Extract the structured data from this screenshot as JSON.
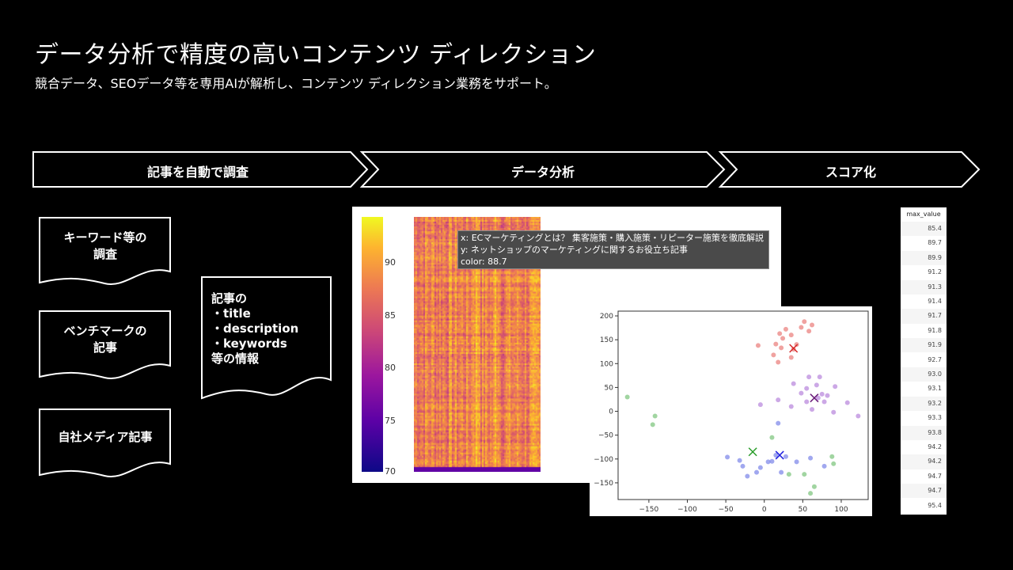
{
  "header": {
    "title": "データ分析で精度の高いコンテンツ ディレクション",
    "subtitle": "競合データ、SEOデータ等を専用AIが解析し、コンテンツ ディレクション業務をサポート。"
  },
  "steps": [
    {
      "label": "記事を自動で調査"
    },
    {
      "label": "データ分析"
    },
    {
      "label": "スコア化"
    }
  ],
  "documents": [
    {
      "line1": "キーワード等の",
      "line2": "調査"
    },
    {
      "line1": "ベンチマークの",
      "line2": "記事"
    },
    {
      "line1": "自社メディア記事",
      "line2": ""
    }
  ],
  "info_doc": {
    "lines": [
      "記事の",
      "・title",
      "・description",
      "・keywords",
      "等の情報"
    ]
  },
  "heatmap": {
    "colorbar_ticks": [
      "90",
      "85",
      "80",
      "75",
      "70"
    ],
    "colorbar_range": [
      70,
      94
    ],
    "colormap": "plasma",
    "tooltip": {
      "x": "x: ECマーケティングとは？ 集客施策・購入施策・リピーター施策を徹底解説",
      "y": "y: ネットショップのマーケティングに関するお役立ち記事",
      "color": "color: 88.7"
    }
  },
  "chart_data": {
    "type": "scatter",
    "xlim": [
      -190,
      135
    ],
    "ylim": [
      -185,
      210
    ],
    "x_ticks": [
      "−150",
      "−100",
      "−50",
      "0",
      "50",
      "100"
    ],
    "y_ticks": [
      "200",
      "150",
      "100",
      "50",
      "0",
      "−50",
      "−100",
      "−150"
    ],
    "grid": false,
    "clusters": [
      {
        "color": "#e8706d",
        "points": [
          [
            -8,
            138
          ],
          [
            12,
            118
          ],
          [
            15,
            141
          ],
          [
            20,
            163
          ],
          [
            24,
            153
          ],
          [
            28,
            172
          ],
          [
            35,
            160
          ],
          [
            38,
            130
          ],
          [
            42,
            140
          ],
          [
            18,
            103
          ],
          [
            48,
            176
          ],
          [
            52,
            188
          ],
          [
            58,
            168
          ],
          [
            62,
            181
          ],
          [
            35,
            113
          ],
          [
            22,
            133
          ]
        ],
        "centroid": [
          38,
          132
        ]
      },
      {
        "color": "#b07ad8",
        "points": [
          [
            -5,
            14
          ],
          [
            18,
            24
          ],
          [
            35,
            10
          ],
          [
            48,
            38
          ],
          [
            55,
            20
          ],
          [
            62,
            4
          ],
          [
            68,
            55
          ],
          [
            70,
            28
          ],
          [
            75,
            36
          ],
          [
            82,
            33
          ],
          [
            90,
            -2
          ],
          [
            92,
            52
          ],
          [
            108,
            18
          ],
          [
            122,
            -10
          ],
          [
            58,
            72
          ],
          [
            72,
            72
          ],
          [
            38,
            58
          ],
          [
            55,
            48
          ],
          [
            78,
            20
          ]
        ],
        "centroid": [
          65,
          28
        ]
      },
      {
        "color": "#6e79e6",
        "points": [
          [
            -48,
            -96
          ],
          [
            -32,
            -103
          ],
          [
            -28,
            -115
          ],
          [
            -22,
            -136
          ],
          [
            -10,
            -128
          ],
          [
            -5,
            -118
          ],
          [
            5,
            -106
          ],
          [
            15,
            -92
          ],
          [
            18,
            -25
          ],
          [
            22,
            -128
          ],
          [
            28,
            -95
          ],
          [
            42,
            -106
          ],
          [
            60,
            -98
          ],
          [
            78,
            -115
          ],
          [
            10,
            -105
          ]
        ],
        "centroid": [
          20,
          -92
        ]
      },
      {
        "color": "#6fbf6f",
        "points": [
          [
            -178,
            30
          ],
          [
            -142,
            -10
          ],
          [
            -145,
            -28
          ],
          [
            10,
            -55
          ],
          [
            32,
            -132
          ],
          [
            52,
            -132
          ],
          [
            60,
            -172
          ],
          [
            65,
            -158
          ],
          [
            88,
            -95
          ],
          [
            90,
            -110
          ]
        ],
        "centroid": [
          -15,
          -85
        ]
      }
    ]
  },
  "table": {
    "header": "max_value",
    "values": [
      "85.4",
      "89.7",
      "89.9",
      "91.2",
      "91.3",
      "91.4",
      "91.7",
      "91.8",
      "91.9",
      "92.7",
      "93.0",
      "93.1",
      "93.2",
      "93.3",
      "93.8",
      "94.2",
      "94.2",
      "94.7",
      "94.7",
      "95.4"
    ]
  }
}
